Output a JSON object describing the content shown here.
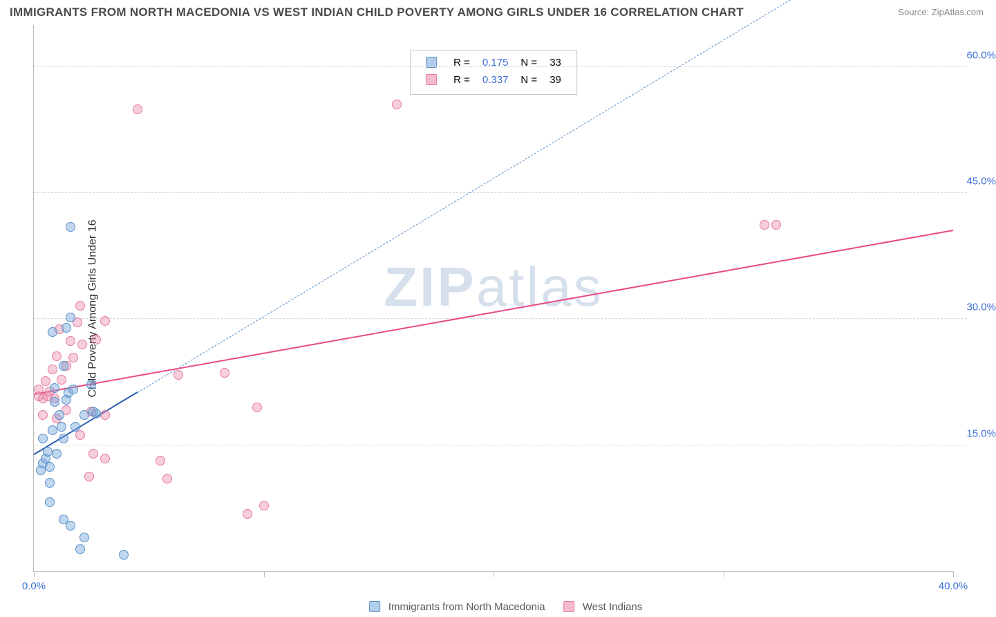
{
  "title": "IMMIGRANTS FROM NORTH MACEDONIA VS WEST INDIAN CHILD POVERTY AMONG GIRLS UNDER 16 CORRELATION CHART",
  "source_prefix": "Source: ",
  "source_name": "ZipAtlas.com",
  "y_axis_label": "Child Poverty Among Girls Under 16",
  "watermark_a": "ZIP",
  "watermark_b": "atlas",
  "chart": {
    "type": "scatter",
    "xlim": [
      0,
      40
    ],
    "ylim": [
      0,
      65
    ],
    "x_ticks": [
      0,
      10,
      20,
      30,
      40
    ],
    "x_tick_labels": [
      "0.0%",
      "",
      "",
      "",
      "40.0%"
    ],
    "y_grid": [
      15,
      30,
      45,
      60
    ],
    "y_grid_labels": [
      "15.0%",
      "30.0%",
      "45.0%",
      "60.0%"
    ],
    "background_color": "#ffffff",
    "grid_color": "#d8d8d8",
    "axis_color": "#bbbbbb",
    "tick_label_color": "#3b6fd6",
    "series": [
      {
        "key": "blue",
        "label": "Immigrants from North Macedonia",
        "R": "0.175",
        "N": "33",
        "marker_fill": "rgba(116,166,218,0.45)",
        "marker_stroke": "#5a8fc9",
        "trend_color": "#2a5db0",
        "trend_dash_color": "#5a8fc9",
        "trend": {
          "x1": 0,
          "y1": 13.8,
          "x2": 4.5,
          "y2": 21.2,
          "extend_to_x": 40
        },
        "points": [
          [
            0.3,
            12.0
          ],
          [
            0.4,
            12.8
          ],
          [
            0.7,
            12.4
          ],
          [
            0.5,
            13.4
          ],
          [
            0.6,
            14.2
          ],
          [
            1.0,
            14.0
          ],
          [
            0.4,
            15.8
          ],
          [
            1.3,
            15.8
          ],
          [
            0.8,
            16.8
          ],
          [
            1.2,
            17.2
          ],
          [
            1.8,
            17.2
          ],
          [
            1.1,
            18.6
          ],
          [
            2.2,
            18.6
          ],
          [
            2.7,
            18.8
          ],
          [
            2.6,
            19.0
          ],
          [
            0.9,
            20.2
          ],
          [
            1.4,
            20.4
          ],
          [
            1.5,
            21.2
          ],
          [
            0.9,
            21.8
          ],
          [
            1.7,
            21.6
          ],
          [
            2.5,
            22.2
          ],
          [
            1.3,
            24.4
          ],
          [
            0.8,
            28.5
          ],
          [
            1.4,
            29.0
          ],
          [
            1.6,
            30.2
          ],
          [
            1.6,
            41.0
          ],
          [
            0.7,
            8.2
          ],
          [
            1.3,
            6.2
          ],
          [
            1.6,
            5.4
          ],
          [
            2.2,
            4.0
          ],
          [
            2.0,
            2.6
          ],
          [
            3.9,
            2.0
          ],
          [
            0.7,
            10.5
          ]
        ]
      },
      {
        "key": "pink",
        "label": "West Indians",
        "R": "0.337",
        "N": "39",
        "marker_fill": "rgba(236,132,164,0.40)",
        "marker_stroke": "#e57aa0",
        "trend_color": "#e94a87",
        "trend": {
          "x1": 0,
          "y1": 21.0,
          "x2": 40,
          "y2": 40.5
        },
        "points": [
          [
            0.2,
            20.8
          ],
          [
            0.4,
            20.6
          ],
          [
            0.6,
            20.8
          ],
          [
            0.9,
            20.6
          ],
          [
            0.2,
            21.6
          ],
          [
            0.7,
            21.4
          ],
          [
            0.5,
            22.6
          ],
          [
            1.2,
            22.8
          ],
          [
            0.8,
            24.0
          ],
          [
            1.4,
            24.4
          ],
          [
            1.0,
            25.6
          ],
          [
            1.7,
            25.4
          ],
          [
            2.1,
            27.0
          ],
          [
            1.6,
            27.4
          ],
          [
            2.7,
            27.6
          ],
          [
            1.1,
            28.8
          ],
          [
            1.9,
            29.6
          ],
          [
            3.1,
            29.8
          ],
          [
            2.0,
            31.6
          ],
          [
            0.4,
            18.6
          ],
          [
            1.0,
            18.2
          ],
          [
            1.4,
            19.2
          ],
          [
            2.5,
            19.0
          ],
          [
            3.1,
            18.6
          ],
          [
            2.0,
            16.2
          ],
          [
            2.6,
            14.0
          ],
          [
            2.4,
            11.3
          ],
          [
            3.1,
            13.4
          ],
          [
            5.5,
            13.2
          ],
          [
            5.8,
            11.0
          ],
          [
            6.3,
            23.4
          ],
          [
            8.3,
            23.6
          ],
          [
            9.7,
            19.5
          ],
          [
            10.0,
            7.8
          ],
          [
            9.3,
            6.8
          ],
          [
            4.5,
            55.0
          ],
          [
            15.8,
            55.5
          ],
          [
            31.8,
            41.2
          ],
          [
            32.3,
            41.2
          ]
        ]
      }
    ],
    "legend_box": {
      "R_label": "R  =",
      "N_label": "N  ="
    }
  },
  "bottom_legend": {
    "a": "Immigrants from North Macedonia",
    "b": "West Indians"
  }
}
